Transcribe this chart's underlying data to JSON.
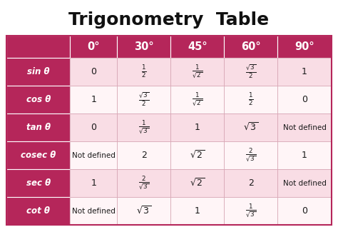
{
  "title": "Trigonometry  Table",
  "title_fontsize": 18,
  "col_headers": [
    "",
    "0°",
    "30°",
    "45°",
    "60°",
    "90°"
  ],
  "row_headers": [
    "sin θ",
    "cos θ",
    "tan θ",
    "cosec θ",
    "sec θ",
    "cot θ"
  ],
  "cell_data": [
    [
      "0",
      "$\\frac{1}{2}$",
      "$\\frac{1}{\\sqrt{2}}$",
      "$\\frac{\\sqrt{3}}{2}$",
      "1"
    ],
    [
      "1",
      "$\\frac{\\sqrt{3}}{2}$",
      "$\\frac{1}{\\sqrt{2}}$",
      "$\\frac{1}{2}$",
      "0"
    ],
    [
      "0",
      "$\\frac{1}{\\sqrt{3}}$",
      "1",
      "$\\sqrt{3}$",
      "Not defined"
    ],
    [
      "Not defined",
      "2",
      "$\\sqrt{2}$",
      "$\\frac{2}{\\sqrt{3}}$",
      "1"
    ],
    [
      "1",
      "$\\frac{2}{\\sqrt{3}}$",
      "$\\sqrt{2}$",
      "2",
      "Not defined"
    ],
    [
      "Not defined",
      "$\\sqrt{3}$",
      "1",
      "$\\frac{1}{\\sqrt{3}}$",
      "0"
    ]
  ],
  "header_bg": "#B5265A",
  "row_header_bg": "#B5265A",
  "row_bg_odd": "#F9DDE5",
  "row_bg_even": "#FFF5F7",
  "header_text_color": "#FFFFFF",
  "row_header_text_color": "#FFFFFF",
  "cell_text_color": "#1a1a1a",
  "outer_bg": "#FFFFFF",
  "border_color": "#B5265A",
  "fig_bg": "#C8C8C8"
}
